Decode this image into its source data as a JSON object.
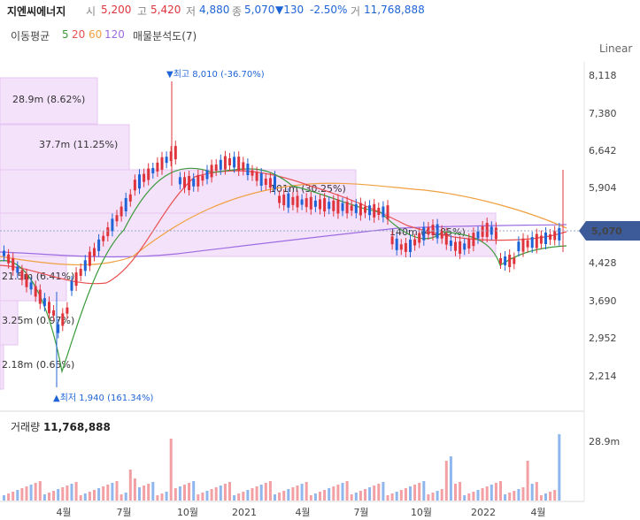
{
  "header": {
    "name": "지엔씨에너지",
    "open_label": "시",
    "open": "5,200",
    "high_label": "고",
    "high": "5,420",
    "low_label": "저",
    "low": "4,880",
    "close_label": "종",
    "close": "5,070",
    "change": "▼130",
    "change_pct": "-2.50%",
    "volume_label": "거",
    "volume": "11,768,888"
  },
  "ma": {
    "label": "이동평균",
    "p5": "5",
    "p20": "20",
    "p60": "60",
    "p120": "120",
    "vp_label": "매물분석도(7)",
    "colors": {
      "p5": "#3a9a3a",
      "p20": "#e85050",
      "p60": "#f0a040",
      "p120": "#9c6ce0"
    }
  },
  "scale_mode": "Linear",
  "price_axis": [
    "8,118",
    "7,380",
    "6,642",
    "5,904",
    "5,166",
    "4,428",
    "3,690",
    "2,952",
    "2,214"
  ],
  "current_price": "5,070",
  "annotations": {
    "high": "▼최고 8,010 (-36.70%)",
    "low": "▲최저 1,940 (161.34%)"
  },
  "volume_profile": [
    {
      "label": "28.9m (8.62%)"
    },
    {
      "label": "37.7m (11.25%)"
    },
    {
      "label": "101m (30.25%)"
    },
    {
      "label": "140m (41.85%)"
    },
    {
      "label": "21.5m (6.41%)"
    },
    {
      "label": "3.25m (0.97%)"
    },
    {
      "label": "2.18m (0.65%)"
    }
  ],
  "volume_panel": {
    "title": "거래량",
    "value": "11,768,888",
    "axis_max": "28.9m"
  },
  "x_axis": [
    "4월",
    "7월",
    "10월",
    "2021",
    "4월",
    "7월",
    "10월",
    "2022",
    "4월"
  ],
  "colors": {
    "up": "#e0343c",
    "down": "#1f64d6",
    "vp": "#f4e2fb",
    "badge": "#3d5a99"
  }
}
